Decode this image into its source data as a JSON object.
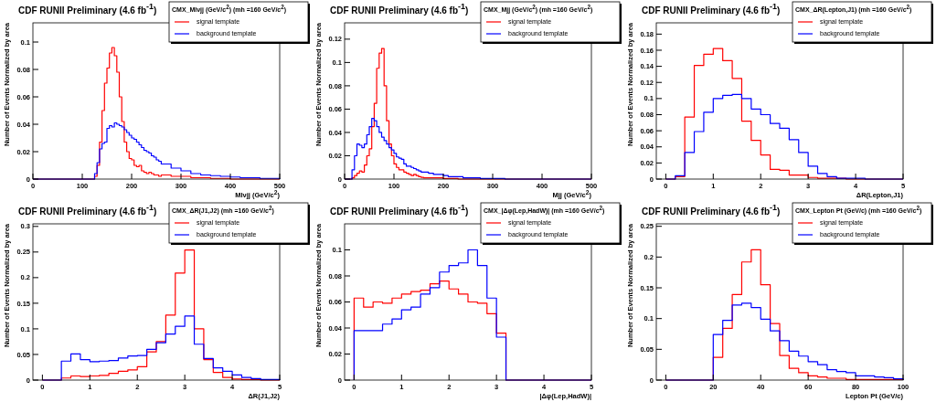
{
  "chart_data": [
    {
      "type": "histogram",
      "title": "CDF RUNII Preliminary (4.6 fb$^{-1}$)",
      "xlabel": "Mlνjj (GeV/c$^{2}$)",
      "ylabel": "Number of Events Normalized by area",
      "legend_title": "CMX_Mlνjj (GeV/c$^{2}$) (mh =160 GeV/c$^{2}$)",
      "legend": "top right",
      "grid": false,
      "xlim": [
        0,
        500
      ],
      "xticks": [
        0,
        100,
        200,
        300,
        400,
        500
      ],
      "ylim": [
        0,
        0.114
      ],
      "yticks": [
        0,
        0.02,
        0.04,
        0.06,
        0.08,
        0.1
      ],
      "bins": [
        0,
        120,
        125,
        130,
        135,
        140,
        145,
        150,
        155,
        160,
        165,
        170,
        175,
        180,
        185,
        190,
        195,
        200,
        205,
        210,
        215,
        220,
        225,
        230,
        235,
        240,
        245,
        250,
        255,
        260,
        280,
        300,
        320,
        340,
        360,
        380,
        400,
        420,
        440,
        460,
        480,
        500
      ],
      "series": [
        {
          "name": "signal template",
          "color": "#ff0000",
          "values": [
            0,
            0,
            0.002,
            0.01,
            0.027,
            0.05,
            0.07,
            0.081,
            0.092,
            0.096,
            0.09,
            0.078,
            0.06,
            0.042,
            0.027,
            0.02,
            0.015,
            0.014,
            0.01,
            0.009,
            0.01,
            0.006,
            0.005,
            0.004,
            0.005,
            0.004,
            0.003,
            0.003,
            0.002,
            0.003,
            0.002,
            0.002,
            0.001,
            0.001,
            0.0005,
            0.0005,
            0,
            0,
            0,
            0,
            0
          ]
        },
        {
          "name": "background template",
          "color": "#0000ff",
          "values": [
            0,
            0,
            0.004,
            0.012,
            0.022,
            0.026,
            0.027,
            0.037,
            0.039,
            0.038,
            0.041,
            0.04,
            0.039,
            0.038,
            0.036,
            0.034,
            0.032,
            0.03,
            0.029,
            0.027,
            0.025,
            0.023,
            0.021,
            0.02,
            0.019,
            0.017,
            0.016,
            0.014,
            0.013,
            0.011,
            0.008,
            0.006,
            0.004,
            0.003,
            0.0025,
            0.002,
            0.0015,
            0.001,
            0.001,
            0.0005,
            0.0005
          ]
        }
      ]
    },
    {
      "type": "histogram",
      "title": "CDF RUNII Preliminary (4.6 fb$^{-1}$)",
      "xlabel": "Mjj (GeV/c$^{2}$)",
      "ylabel": "Number of Events Normalized by area",
      "legend_title": "CMX_Mjj (GeV/c$^{2}$) (mh =160 GeV/c$^{2}$)",
      "legend": "top right",
      "grid": false,
      "xlim": [
        0,
        500
      ],
      "xticks": [
        0,
        100,
        200,
        300,
        400,
        500
      ],
      "ylim": [
        0,
        0.134
      ],
      "yticks": [
        0,
        0.02,
        0.04,
        0.06,
        0.08,
        0.1,
        0.12
      ],
      "bins": [
        0,
        15,
        20,
        25,
        30,
        35,
        40,
        45,
        50,
        55,
        60,
        65,
        70,
        75,
        80,
        85,
        90,
        95,
        100,
        105,
        110,
        115,
        120,
        125,
        130,
        135,
        140,
        145,
        150,
        155,
        160,
        170,
        180,
        190,
        200,
        210,
        220,
        230,
        240,
        250,
        275,
        300,
        325,
        350,
        375,
        400,
        425,
        450,
        475,
        500
      ],
      "series": [
        {
          "name": "signal template",
          "color": "#ff0000",
          "values": [
            0,
            0.001,
            0.003,
            0.005,
            0.007,
            0.006,
            0.012,
            0.02,
            0.026,
            0.045,
            0.065,
            0.095,
            0.108,
            0.112,
            0.08,
            0.05,
            0.03,
            0.02,
            0.013,
            0.01,
            0.008,
            0.008,
            0.006,
            0.005,
            0.004,
            0.003,
            0.004,
            0.003,
            0.002,
            0.0015,
            0.001,
            0.001,
            0.001,
            0.001,
            0.0005,
            0.0005,
            0.0005,
            0,
            0,
            0,
            0,
            0,
            0,
            0,
            0,
            0,
            0,
            0,
            0
          ]
        },
        {
          "name": "background template",
          "color": "#0000ff",
          "values": [
            0,
            0.008,
            0.02,
            0.03,
            0.029,
            0.027,
            0.03,
            0.038,
            0.045,
            0.052,
            0.05,
            0.045,
            0.04,
            0.036,
            0.033,
            0.03,
            0.027,
            0.025,
            0.022,
            0.019,
            0.018,
            0.017,
            0.013,
            0.011,
            0.011,
            0.01,
            0.009,
            0.008,
            0.007,
            0.006,
            0.006,
            0.005,
            0.004,
            0.004,
            0.003,
            0.002,
            0.002,
            0.002,
            0.001,
            0.001,
            0.0005,
            0.0005,
            0,
            0,
            0,
            0,
            0,
            0,
            0
          ]
        }
      ]
    },
    {
      "type": "histogram",
      "title": "CDF RUNII Preliminary (4.6 fb$^{-1}$)",
      "xlabel": "ΔR(Lepton,J1)",
      "ylabel": "Number of Events Normalized by area",
      "legend_title": "CMX_ΔR(Lepton,J1) (mh =160 GeV/c$^{2}$)",
      "legend": "top right",
      "grid": false,
      "xlim": [
        -0.2,
        5
      ],
      "xticks": [
        0,
        1,
        2,
        3,
        4,
        5
      ],
      "ylim": [
        0,
        0.194
      ],
      "yticks": [
        0,
        0.02,
        0.04,
        0.06,
        0.08,
        0.1,
        0.12,
        0.14,
        0.16,
        0.18
      ],
      "bins": [
        0,
        0.2,
        0.4,
        0.6,
        0.8,
        1,
        1.2,
        1.4,
        1.6,
        1.8,
        2,
        2.2,
        2.4,
        2.6,
        2.8,
        3,
        3.2,
        3.4,
        3.6,
        3.8,
        4,
        4.2,
        4.4,
        4.6,
        4.8,
        5
      ],
      "series": [
        {
          "name": "signal template",
          "color": "#ff0000",
          "values": [
            0,
            0.003,
            0.077,
            0.141,
            0.155,
            0.162,
            0.147,
            0.125,
            0.072,
            0.048,
            0.03,
            0.012,
            0.011,
            0.005,
            0.005,
            0.002,
            0.001,
            0.001,
            0.001,
            0,
            0,
            0,
            0,
            0,
            0
          ]
        },
        {
          "name": "background template",
          "color": "#0000ff",
          "values": [
            0,
            0.004,
            0.033,
            0.059,
            0.083,
            0.1,
            0.104,
            0.105,
            0.1,
            0.087,
            0.08,
            0.069,
            0.063,
            0.049,
            0.033,
            0.016,
            0.007,
            0.003,
            0.001,
            0.001,
            0.001,
            0,
            0,
            0,
            0
          ]
        }
      ]
    },
    {
      "type": "histogram",
      "title": "CDF RUNII Preliminary (4.6 fb$^{-1}$)",
      "xlabel": "ΔR(J1,J2)",
      "ylabel": "Number of Events Normalized by area",
      "legend_title": "CMX_ΔR(J1,J2) (mh =160 GeV/c$^{2}$)",
      "legend": "top right",
      "grid": false,
      "xlim": [
        -0.2,
        5
      ],
      "xticks": [
        0,
        1,
        2,
        3,
        4,
        5
      ],
      "ylim": [
        0,
        0.305
      ],
      "yticks": [
        0,
        0.05,
        0.1,
        0.15,
        0.2,
        0.25,
        0.3
      ],
      "bins": [
        0,
        0.2,
        0.4,
        0.6,
        0.8,
        1,
        1.2,
        1.4,
        1.6,
        1.8,
        2,
        2.2,
        2.4,
        2.6,
        2.8,
        3,
        3.2,
        3.4,
        3.6,
        3.8,
        4,
        4.2,
        4.4,
        4.6,
        4.8,
        5
      ],
      "series": [
        {
          "name": "signal template",
          "color": "#ff0000",
          "values": [
            0,
            0,
            0.004,
            0.008,
            0.007,
            0.008,
            0.009,
            0.013,
            0.017,
            0.02,
            0.026,
            0.055,
            0.075,
            0.127,
            0.209,
            0.254,
            0.1,
            0.04,
            0.015,
            0.005,
            0.002,
            0.001,
            0.001,
            0,
            0
          ]
        },
        {
          "name": "background template",
          "color": "#0000ff",
          "values": [
            0,
            0,
            0.037,
            0.051,
            0.04,
            0.036,
            0.037,
            0.038,
            0.043,
            0.047,
            0.048,
            0.06,
            0.073,
            0.09,
            0.105,
            0.125,
            0.07,
            0.042,
            0.024,
            0.017,
            0.01,
            0.005,
            0.003,
            0.001,
            0.001
          ]
        }
      ]
    },
    {
      "type": "histogram",
      "title": "CDF RUNII Preliminary (4.6 fb$^{-1}$)",
      "xlabel": "|Δφ(Lep,HadW)|",
      "ylabel": "Number of Events Normalized by area",
      "legend_title": "CMX_|Δφ(Lep,HadW)| (mh =160 GeV/c$^{2}$)",
      "legend": "top right",
      "grid": false,
      "xlim": [
        -0.2,
        5
      ],
      "xticks": [
        0,
        1,
        2,
        3,
        4,
        5
      ],
      "ylim": [
        0,
        0.12
      ],
      "yticks": [
        0,
        0.02,
        0.04,
        0.06,
        0.08,
        0.1
      ],
      "bins": [
        0,
        0.2,
        0.4,
        0.6,
        0.8,
        1,
        1.2,
        1.4,
        1.6,
        1.8,
        2,
        2.2,
        2.4,
        2.6,
        2.8,
        3,
        3.2,
        3.4,
        3.6,
        3.8,
        4,
        4.2,
        4.4,
        4.6,
        4.8,
        5
      ],
      "series": [
        {
          "name": "signal template",
          "color": "#ff0000",
          "values": [
            0.063,
            0.056,
            0.06,
            0.059,
            0.063,
            0.066,
            0.068,
            0.069,
            0.074,
            0.076,
            0.07,
            0.066,
            0.06,
            0.059,
            0.051,
            0.036,
            0,
            0,
            0,
            0,
            0,
            0,
            0,
            0,
            0
          ]
        },
        {
          "name": "background template",
          "color": "#0000ff",
          "values": [
            0.038,
            0.038,
            0.038,
            0.043,
            0.047,
            0.054,
            0.056,
            0.066,
            0.071,
            0.083,
            0.088,
            0.09,
            0.1,
            0.088,
            0.063,
            0.033,
            0,
            0,
            0,
            0,
            0,
            0,
            0,
            0,
            0
          ]
        }
      ]
    },
    {
      "type": "histogram",
      "title": "CDF RUNII Preliminary (4.6 fb$^{-1}$)",
      "xlabel": "Lepton Pt (GeV/c)",
      "ylabel": "Number of Events Normalized by area",
      "legend_title": "CMX_Lepton Pt (GeV/c) (mh =160 GeV/c$^{2}$)",
      "legend": "top right",
      "grid": false,
      "xlim": [
        -4,
        100
      ],
      "xticks": [
        0,
        20,
        40,
        60,
        80,
        100
      ],
      "ylim": [
        0,
        0.254
      ],
      "yticks": [
        0,
        0.05,
        0.1,
        0.15,
        0.2,
        0.25
      ],
      "bins": [
        0,
        4,
        8,
        12,
        16,
        20,
        24,
        28,
        32,
        36,
        40,
        44,
        48,
        52,
        56,
        60,
        64,
        68,
        72,
        76,
        80,
        84,
        88,
        92,
        96,
        100
      ],
      "series": [
        {
          "name": "signal template",
          "color": "#ff0000",
          "values": [
            0,
            0,
            0,
            0,
            0,
            0.037,
            0.084,
            0.139,
            0.192,
            0.212,
            0.155,
            0.092,
            0.04,
            0.019,
            0.012,
            0.007,
            0.005,
            0.003,
            0.003,
            0.001,
            0.001,
            0.001,
            0.001,
            0.001,
            0.001
          ]
        },
        {
          "name": "background template",
          "color": "#0000ff",
          "values": [
            0,
            0,
            0,
            0,
            0,
            0.074,
            0.097,
            0.122,
            0.125,
            0.118,
            0.099,
            0.08,
            0.064,
            0.047,
            0.039,
            0.03,
            0.025,
            0.017,
            0.014,
            0.012,
            0.007,
            0.007,
            0.005,
            0.004,
            0.002
          ]
        }
      ]
    }
  ]
}
